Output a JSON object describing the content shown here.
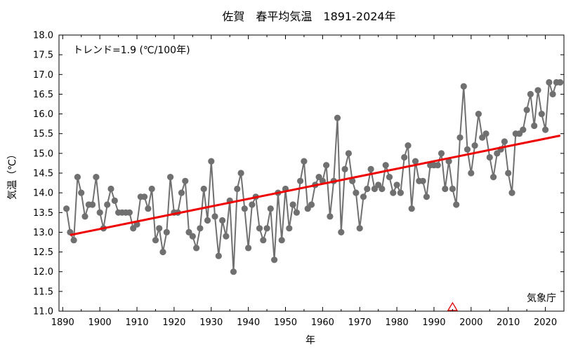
{
  "chart_data": {
    "type": "line",
    "title": "佐賀　春平均気温　1891-2024年",
    "xlabel": "年",
    "ylabel": "気温（℃）",
    "trend_annotation": "トレンド=1.9 (℃/100年)",
    "source_label": "気象庁",
    "xlim": [
      1889,
      2025
    ],
    "ylim": [
      11.0,
      18.0
    ],
    "x_ticks": [
      1890,
      1900,
      1910,
      1920,
      1930,
      1940,
      1950,
      1960,
      1970,
      1980,
      1990,
      2000,
      2010,
      2020
    ],
    "x_tick_labels": [
      "1890",
      "1900",
      "1910",
      "1920",
      "1930",
      "1940",
      "1950",
      "1960",
      "1970",
      "1980",
      "1990",
      "2000",
      "2010",
      "2020"
    ],
    "y_ticks": [
      11.0,
      11.5,
      12.0,
      12.5,
      13.0,
      13.5,
      14.0,
      14.5,
      15.0,
      15.5,
      16.0,
      16.5,
      17.0,
      17.5,
      18.0
    ],
    "y_tick_labels": [
      "11.0",
      "11.5",
      "12.0",
      "12.5",
      "13.0",
      "13.5",
      "14.0",
      "14.5",
      "15.0",
      "15.5",
      "16.0",
      "16.5",
      "17.0",
      "17.5",
      "18.0"
    ],
    "grid": false,
    "colors": {
      "series": "#707070",
      "trend": "#ee0000",
      "marker_triangle": "#dd0000"
    },
    "series": [
      {
        "start_year": 1891,
        "values": [
          13.6,
          13.0,
          12.8,
          14.4,
          14.0,
          13.4,
          13.7,
          13.7,
          14.4,
          13.5,
          13.1,
          13.7,
          14.1,
          13.8,
          13.5,
          13.5,
          13.5,
          13.5,
          13.1,
          13.2,
          13.9,
          13.9,
          13.6,
          14.1,
          12.8,
          13.1,
          12.5,
          13.0,
          14.4,
          13.5,
          13.5,
          14.0,
          14.3,
          13.0,
          12.9,
          12.6,
          13.1,
          14.1,
          13.3,
          14.8,
          13.4,
          12.4,
          13.3,
          12.9,
          13.8,
          12.0,
          14.1,
          14.5,
          13.6,
          12.6,
          13.7,
          13.9,
          13.1,
          12.8,
          13.1,
          13.6,
          12.3,
          14.0,
          12.8,
          14.1,
          13.1,
          13.7,
          13.5,
          14.3,
          14.8,
          13.6,
          13.7,
          14.2,
          14.4,
          14.3,
          14.7,
          13.4,
          14.3,
          15.9,
          13.0,
          14.6,
          15.0,
          14.3,
          14.0,
          13.1,
          13.9,
          14.1,
          14.6,
          14.1,
          14.2,
          14.1,
          14.7,
          14.4,
          14.0,
          14.2,
          14.0,
          14.9,
          15.2,
          13.6,
          14.8,
          14.3,
          14.3,
          13.9,
          14.7,
          14.7,
          14.7,
          15.0,
          14.1,
          14.8,
          14.1,
          13.7,
          15.4,
          16.7,
          15.1,
          14.5,
          15.2,
          16.0,
          15.4,
          15.5,
          14.9,
          14.4,
          15.0,
          15.1,
          15.3,
          14.5,
          14.0,
          15.5,
          15.5,
          15.6,
          16.1,
          16.5,
          15.7,
          16.6,
          16.0,
          15.6,
          16.8,
          16.5,
          16.8,
          16.8
        ]
      }
    ],
    "trend_line": {
      "x": [
        1892,
        2024
      ],
      "y": [
        12.93,
        15.45
      ]
    },
    "markers": [
      {
        "shape": "triangle",
        "year": 1995,
        "y": 11.0
      }
    ]
  }
}
